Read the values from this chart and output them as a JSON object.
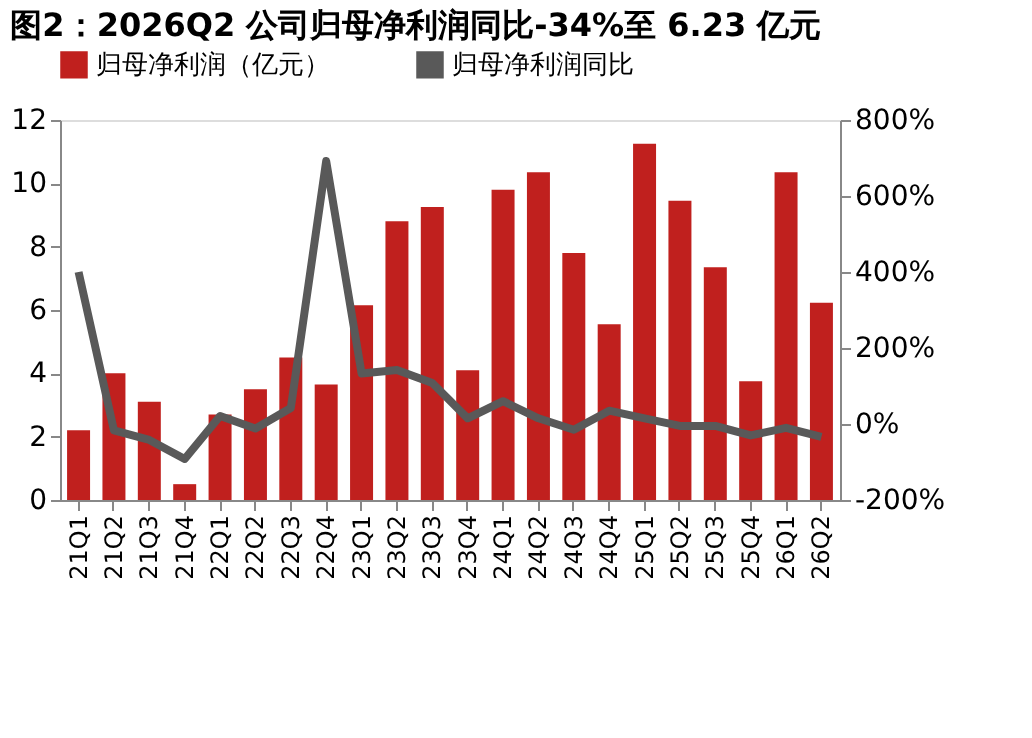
{
  "chart_data": {
    "type": "bar",
    "title": "图2：2026Q2 公司归母净利润同比-34%至 6.23 亿元",
    "categories": [
      "21Q1",
      "21Q2",
      "21Q3",
      "21Q4",
      "22Q1",
      "22Q2",
      "22Q3",
      "22Q4",
      "23Q1",
      "23Q2",
      "23Q3",
      "23Q4",
      "24Q1",
      "24Q2",
      "24Q3",
      "24Q4",
      "25Q1",
      "25Q2",
      "25Q3",
      "25Q4",
      "26Q1",
      "26Q2"
    ],
    "series": [
      {
        "name": "归母净利润（亿元）",
        "color": "#c0201e",
        "values": [
          2.2,
          4.0,
          3.1,
          0.5,
          2.7,
          3.5,
          4.5,
          3.65,
          6.15,
          8.8,
          9.25,
          4.1,
          9.8,
          10.35,
          7.8,
          5.55,
          11.25,
          9.45,
          7.35,
          3.75,
          10.35,
          6.23
        ]
      },
      {
        "name": "归母净利润同比",
        "type": "line",
        "axis": "y2",
        "color": "#595959",
        "values": [
          400,
          -17,
          -42,
          -92,
          21,
          -12,
          42,
          692,
          133,
          142,
          108,
          15,
          60,
          15,
          -15,
          35,
          15,
          -5,
          -5,
          -30,
          -10,
          -34
        ]
      }
    ],
    "ylim": [
      0,
      12
    ],
    "yticks": [
      0,
      2,
      4,
      6,
      8,
      10,
      12
    ],
    "y2lim": [
      -200,
      800
    ],
    "y2ticks": [
      {
        "value": -200,
        "label": "-200%"
      },
      {
        "value": 0,
        "label": "0%"
      },
      {
        "value": 200,
        "label": "200%"
      },
      {
        "value": 400,
        "label": "400%"
      },
      {
        "value": 600,
        "label": "600%"
      },
      {
        "value": 800,
        "label": "800%"
      }
    ],
    "grid": false,
    "legend": "top"
  }
}
